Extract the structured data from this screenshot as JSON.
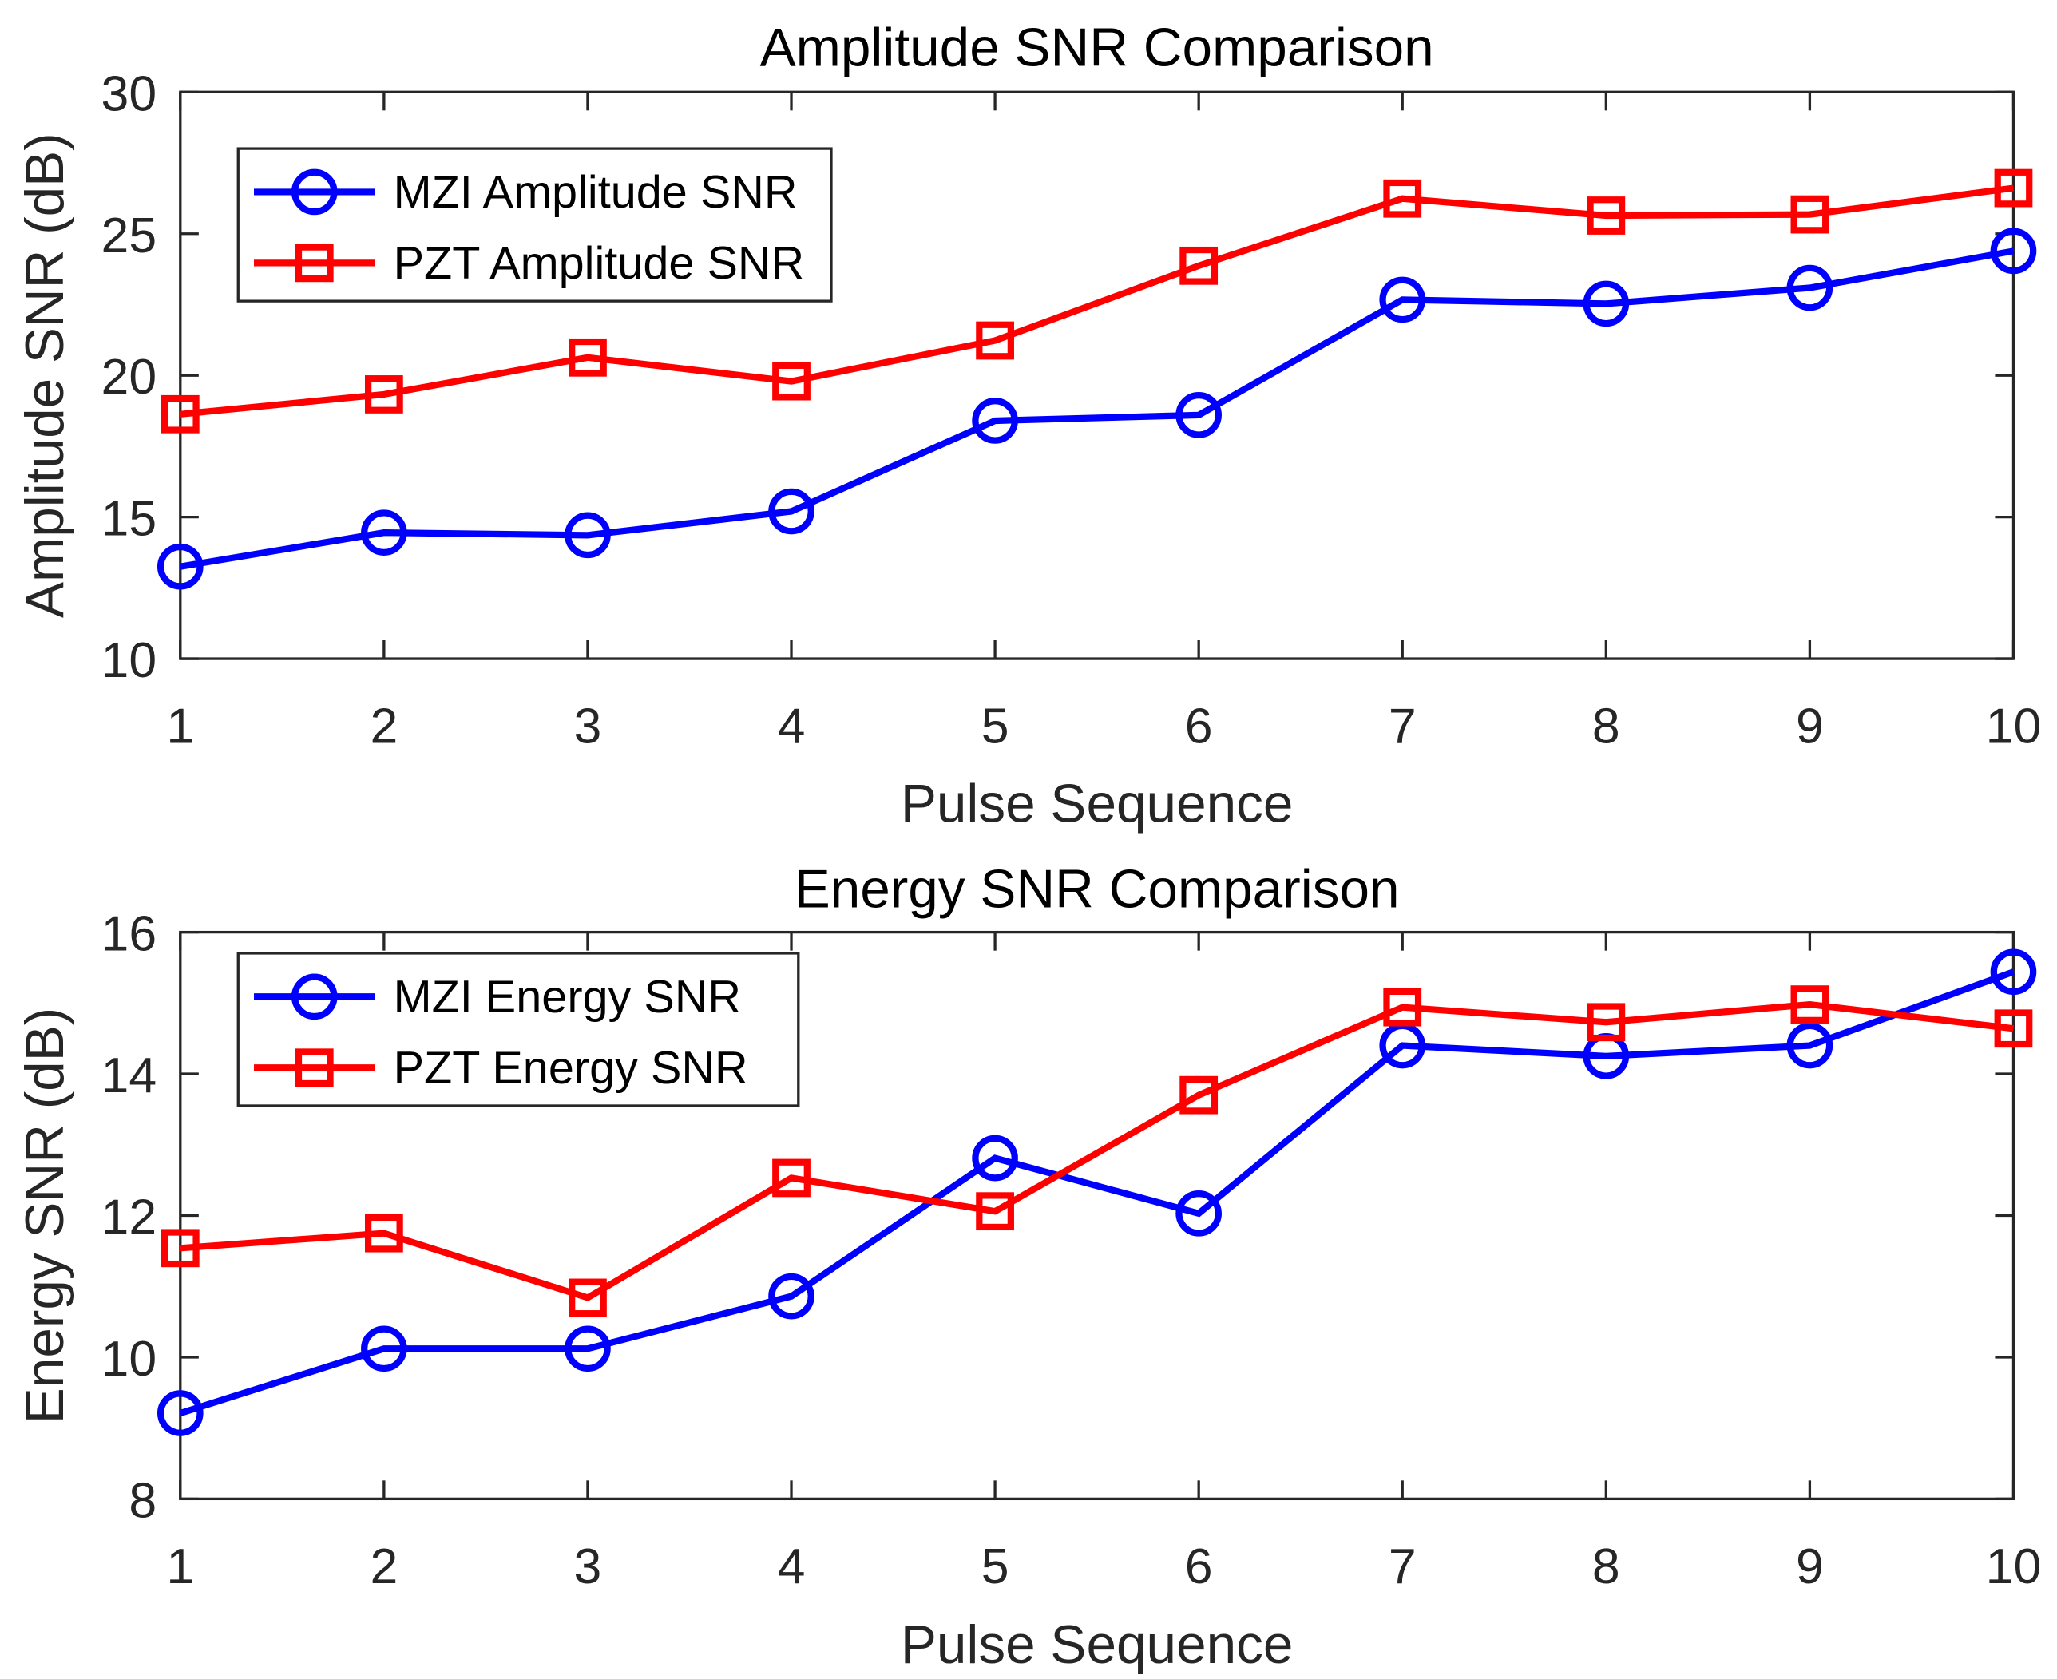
{
  "chart_data": [
    {
      "type": "line",
      "title": "Amplitude SNR Comparison",
      "xlabel": "Pulse Sequence",
      "ylabel": "Amplitude SNR (dB)",
      "x": [
        1,
        2,
        3,
        4,
        5,
        6,
        7,
        8,
        9,
        10
      ],
      "xlim": [
        1,
        10
      ],
      "ylim": [
        10,
        30
      ],
      "xticks": [
        1,
        2,
        3,
        4,
        5,
        6,
        7,
        8,
        9,
        10
      ],
      "yticks": [
        10,
        15,
        20,
        25,
        30
      ],
      "grid": false,
      "legend_position": "top-left",
      "series": [
        {
          "name": "MZI Amplitude SNR",
          "color": "#0000ff",
          "marker": "circle",
          "values": [
            13.25,
            14.45,
            14.36,
            15.2,
            18.4,
            18.6,
            22.67,
            22.53,
            23.09,
            24.39
          ]
        },
        {
          "name": "PZT Amplitude SNR",
          "color": "#ff0000",
          "marker": "square",
          "values": [
            18.63,
            19.33,
            20.63,
            19.79,
            21.23,
            23.87,
            26.24,
            25.64,
            25.68,
            26.61
          ]
        }
      ]
    },
    {
      "type": "line",
      "title": "Energy SNR Comparison",
      "xlabel": "Pulse Sequence",
      "ylabel": "Energy SNR (dB)",
      "x": [
        1,
        2,
        3,
        4,
        5,
        6,
        7,
        8,
        9,
        10
      ],
      "xlim": [
        1,
        10
      ],
      "ylim": [
        8,
        16
      ],
      "xticks": [
        1,
        2,
        3,
        4,
        5,
        6,
        7,
        8,
        9,
        10
      ],
      "yticks": [
        8,
        10,
        12,
        14,
        16
      ],
      "grid": false,
      "legend_position": "top-left",
      "series": [
        {
          "name": "MZI Energy SNR",
          "color": "#0000ff",
          "marker": "circle",
          "values": [
            9.21,
            10.12,
            10.12,
            10.86,
            12.81,
            12.03,
            14.4,
            14.25,
            14.4,
            15.44
          ]
        },
        {
          "name": "PZT Energy SNR",
          "color": "#ff0000",
          "marker": "square",
          "values": [
            11.54,
            11.75,
            10.84,
            12.53,
            12.06,
            13.7,
            14.94,
            14.73,
            14.98,
            14.64
          ]
        }
      ]
    }
  ]
}
